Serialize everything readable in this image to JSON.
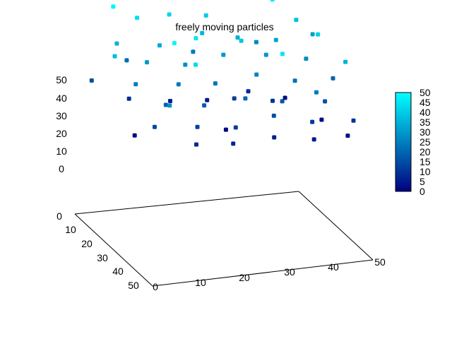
{
  "chart_data": {
    "type": "scatter",
    "title": "freely moving particles",
    "xlim": [
      0,
      50
    ],
    "ylim": [
      0,
      50
    ],
    "zlim": [
      0,
      50
    ],
    "x_ticks": [
      "10",
      "20",
      "30",
      "40",
      "50"
    ],
    "y_ticks": [
      "10",
      "20",
      "30",
      "40",
      "50"
    ],
    "y_origin_tick": "0",
    "z_ticks": [
      "0",
      "10",
      "20",
      "30",
      "40",
      "50"
    ],
    "x_origin_tick": "0",
    "colorbar": {
      "range": [
        0,
        50
      ],
      "ticks": [
        "0",
        "5",
        "10",
        "15",
        "20",
        "25",
        "30",
        "35",
        "40",
        "45",
        "50"
      ],
      "colors": [
        "#000080",
        "#00ffff"
      ]
    },
    "grid": false,
    "legend": "none",
    "points": [
      [
        8,
        2,
        48
      ],
      [
        12,
        6,
        44
      ],
      [
        20,
        4,
        42
      ],
      [
        28,
        5,
        40
      ],
      [
        35,
        3,
        46
      ],
      [
        42,
        8,
        47
      ],
      [
        46,
        12,
        38
      ],
      [
        6,
        10,
        35
      ],
      [
        15,
        12,
        33
      ],
      [
        25,
        11,
        36
      ],
      [
        32,
        14,
        34
      ],
      [
        40,
        16,
        32
      ],
      [
        10,
        18,
        30
      ],
      [
        18,
        20,
        28
      ],
      [
        27,
        19,
        30
      ],
      [
        36,
        21,
        29
      ],
      [
        44,
        24,
        27
      ],
      [
        5,
        25,
        25
      ],
      [
        14,
        27,
        24
      ],
      [
        22,
        28,
        23
      ],
      [
        31,
        29,
        26
      ],
      [
        39,
        31,
        22
      ],
      [
        48,
        30,
        20
      ],
      [
        9,
        33,
        19
      ],
      [
        17,
        35,
        18
      ],
      [
        26,
        36,
        20
      ],
      [
        34,
        37,
        17
      ],
      [
        43,
        39,
        16
      ],
      [
        4,
        40,
        14
      ],
      [
        13,
        42,
        13
      ],
      [
        21,
        44,
        12
      ],
      [
        30,
        43,
        15
      ],
      [
        38,
        45,
        11
      ],
      [
        47,
        46,
        10
      ],
      [
        11,
        47,
        8
      ],
      [
        19,
        48,
        7
      ],
      [
        29,
        46,
        6
      ],
      [
        37,
        49,
        5
      ],
      [
        45,
        48,
        4
      ],
      [
        7,
        15,
        9
      ],
      [
        16,
        16,
        6
      ],
      [
        24,
        17,
        5
      ],
      [
        33,
        18,
        8
      ],
      [
        41,
        19,
        3
      ],
      [
        3,
        30,
        2
      ],
      [
        23,
        32,
        1
      ],
      [
        44,
        34,
        2
      ],
      [
        10,
        5,
        21
      ],
      [
        24,
        8,
        24
      ],
      [
        38,
        9,
        26
      ],
      [
        49,
        14,
        31
      ],
      [
        2,
        20,
        37
      ],
      [
        30,
        22,
        39
      ],
      [
        46,
        26,
        41
      ],
      [
        14,
        38,
        43
      ],
      [
        33,
        40,
        45
      ],
      [
        6,
        44,
        28
      ],
      [
        40,
        42,
        24
      ],
      [
        19,
        24,
        45
      ],
      [
        27,
        26,
        12
      ],
      [
        35,
        28,
        10
      ],
      [
        12,
        30,
        49
      ],
      [
        48,
        38,
        35
      ],
      [
        1,
        8,
        15
      ]
    ]
  }
}
